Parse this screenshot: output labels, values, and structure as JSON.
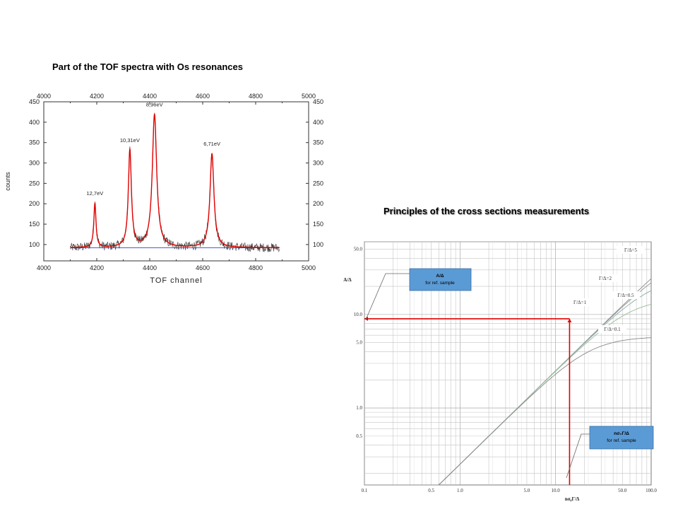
{
  "slide": {
    "left_title": "Part of the TOF spectra with Os resonances",
    "right_title": "Principles of the cross sections measurements"
  },
  "chart_data": [
    {
      "type": "line",
      "xlabel": "TOF channel",
      "ylabel": "counts",
      "xlim": [
        4000,
        5000
      ],
      "ylim": [
        60,
        450
      ],
      "x_ticks": [
        "4000",
        "4200",
        "4400",
        "4600",
        "4800",
        "5000"
      ],
      "y_ticks": [
        "100",
        "150",
        "200",
        "250",
        "300",
        "350",
        "400",
        "450"
      ],
      "series": [
        {
          "kind": "measured",
          "color": "#333333"
        },
        {
          "kind": "fit",
          "color": "#e00000"
        },
        {
          "kind": "background",
          "color": "#3344cc"
        }
      ],
      "baseline": 92,
      "peaks": [
        {
          "label": "12,7eV",
          "x": 4193,
          "height": 200
        },
        {
          "label": "10,31eV",
          "x": 4325,
          "height": 330
        },
        {
          "label": "8,96eV",
          "x": 4418,
          "height": 418
        },
        {
          "label": "6,71eV",
          "x": 4635,
          "height": 322
        }
      ],
      "x_range_data": [
        4100,
        4890
      ],
      "grid": false
    },
    {
      "type": "line",
      "xlabel": "nσ₀Γ/Δ",
      "ylabel": "A/Δ",
      "xscale": "log",
      "yscale": "log",
      "xlim": [
        0.1,
        100
      ],
      "ylim": [
        0.15,
        60
      ],
      "x_ticks": [
        "0.1",
        "0.5",
        "1.0",
        "5.0",
        "10.0",
        "50.0",
        "100.0"
      ],
      "y_ticks": [
        "0.5",
        "1.0",
        "5.0",
        "10.0",
        "50.0"
      ],
      "grid": true,
      "series": [
        {
          "name": "Γ/Δ=5"
        },
        {
          "name": "Γ/Δ=2"
        },
        {
          "name": "Γ/Δ=1"
        },
        {
          "name": "Γ/Δ=0.5"
        },
        {
          "name": "Γ/Δ=0.1"
        }
      ],
      "reference_point": {
        "x": 14,
        "y": 9
      },
      "annotations": [
        {
          "line1": "A/Δ",
          "line2": "for ref. sample"
        },
        {
          "line1": "nσ₀Γ/Δ",
          "line2": "for ref. sample"
        }
      ]
    }
  ]
}
